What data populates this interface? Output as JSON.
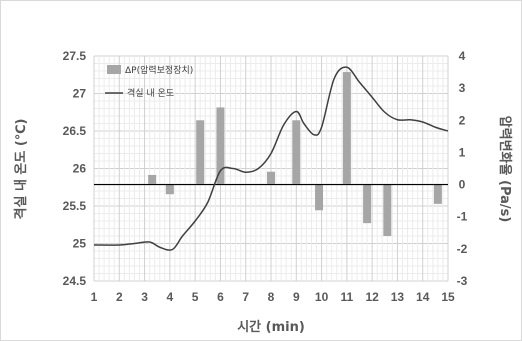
{
  "chart_data": {
    "type": "bar+line",
    "xlabel": "시간 (min)",
    "ylabel_left": "격실 내 온도 (℃)",
    "ylabel_right": "압력변화율 (Pa/s)",
    "x_ticks": [
      1,
      2,
      3,
      4,
      5,
      6,
      7,
      8,
      9,
      10,
      11,
      12,
      13,
      14,
      15
    ],
    "y_left_ticks": [
      "24.5",
      "25",
      "25.5",
      "26",
      "26.5",
      "27",
      "27.5"
    ],
    "y_right_ticks": [
      "-3",
      "-2",
      "-1",
      "0",
      "1",
      "2",
      "3",
      "4"
    ],
    "y_left_lim": [
      24.5,
      27.5
    ],
    "y_right_lim": [
      -3,
      4
    ],
    "grid": true,
    "legend_position": "top-left",
    "series": [
      {
        "name": "ΔP(압력보정장치)",
        "kind": "bar",
        "axis": "right",
        "color": "#a6a6a6",
        "x": [
          3.3,
          4.0,
          5.2,
          6.0,
          8.0,
          9.0,
          9.9,
          11.0,
          11.8,
          12.6,
          14.6
        ],
        "values": [
          0.3,
          -0.3,
          2.0,
          2.4,
          0.4,
          2.0,
          -0.8,
          3.5,
          -1.2,
          -1.6,
          -0.6
        ]
      },
      {
        "name": "격실 내 온도",
        "kind": "line",
        "axis": "left",
        "color": "#404040",
        "x": [
          1.0,
          2.0,
          2.6,
          3.2,
          3.6,
          4.1,
          4.5,
          5.0,
          5.5,
          6.0,
          6.5,
          7.0,
          7.5,
          8.0,
          8.5,
          9.0,
          9.3,
          9.7,
          10.0,
          10.5,
          11.0,
          11.5,
          12.0,
          12.5,
          13.0,
          13.5,
          14.0,
          14.5,
          15.0
        ],
        "values": [
          24.98,
          24.98,
          25.0,
          25.02,
          24.95,
          24.92,
          25.1,
          25.3,
          25.55,
          25.97,
          26.0,
          25.95,
          26.0,
          26.2,
          26.58,
          26.76,
          26.6,
          26.45,
          26.55,
          27.2,
          27.35,
          27.15,
          26.95,
          26.75,
          26.65,
          26.65,
          26.62,
          26.55,
          26.5
        ]
      }
    ]
  }
}
